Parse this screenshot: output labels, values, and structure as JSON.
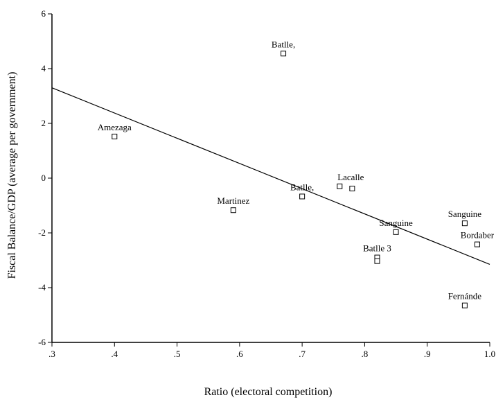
{
  "chart_data": {
    "type": "scatter",
    "title": "",
    "xlabel": "Ratio (electoral competition)",
    "ylabel": "Fiscal Balance/GDP (average per government)",
    "xlim": [
      0.3,
      1.0
    ],
    "ylim": [
      -6,
      6
    ],
    "grid": false,
    "legend": false,
    "x_ticks": [
      {
        "value": 0.3,
        "label": ".3"
      },
      {
        "value": 0.4,
        "label": ".4"
      },
      {
        "value": 0.5,
        "label": ".5"
      },
      {
        "value": 0.6,
        "label": ".6"
      },
      {
        "value": 0.7,
        "label": ".7"
      },
      {
        "value": 0.8,
        "label": ".8"
      },
      {
        "value": 0.9,
        "label": ".9"
      },
      {
        "value": 1.0,
        "label": "1.0"
      }
    ],
    "y_ticks": [
      {
        "value": 6,
        "label": "6"
      },
      {
        "value": 4,
        "label": "4"
      },
      {
        "value": 2,
        "label": "2"
      },
      {
        "value": 0,
        "label": "0"
      },
      {
        "value": -2,
        "label": "-2"
      },
      {
        "value": -4,
        "label": "-4"
      },
      {
        "value": -6,
        "label": "-6"
      }
    ],
    "points": [
      {
        "x": 0.67,
        "y": 4.55,
        "label": "Batlle,",
        "label_pos": "above"
      },
      {
        "x": 0.4,
        "y": 1.52,
        "label": "Amezaga",
        "label_pos": "above"
      },
      {
        "x": 0.59,
        "y": -1.17,
        "label": "Martinez",
        "label_pos": "above"
      },
      {
        "x": 0.7,
        "y": -0.67,
        "label": "Batlle,",
        "label_pos": "above"
      },
      {
        "x": 0.76,
        "y": -0.3,
        "label": "Lacalle",
        "label_pos": "above-right"
      },
      {
        "x": 0.78,
        "y": -0.38,
        "label": "",
        "label_pos": "none"
      },
      {
        "x": 0.85,
        "y": -1.97,
        "label": "Sanguine",
        "label_pos": "above"
      },
      {
        "x": 0.82,
        "y": -2.9,
        "label": "Batlle 3",
        "label_pos": "above"
      },
      {
        "x": 0.82,
        "y": -3.03,
        "label": "",
        "label_pos": "none"
      },
      {
        "x": 0.96,
        "y": -1.65,
        "label": "Sanguine",
        "label_pos": "above"
      },
      {
        "x": 0.98,
        "y": -2.42,
        "label": "Bordaber",
        "label_pos": "above"
      },
      {
        "x": 0.96,
        "y": -4.65,
        "label": "Fernánde",
        "label_pos": "above"
      }
    ],
    "fit_line": {
      "x": [
        0.3,
        1.0
      ],
      "y": [
        3.3,
        -3.15
      ]
    }
  }
}
